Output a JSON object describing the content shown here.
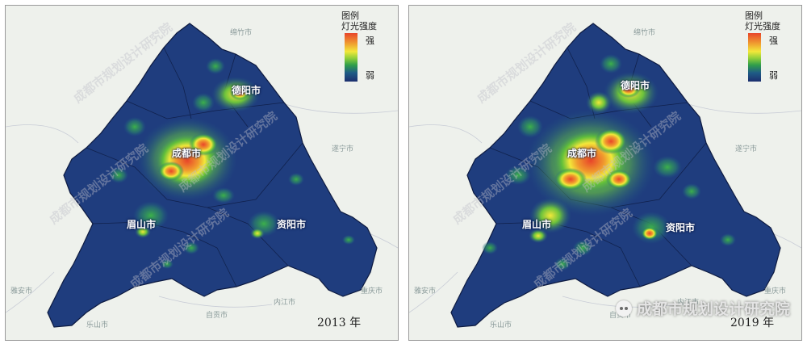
{
  "panels": [
    {
      "year": "2013 年",
      "legend": {
        "title": "图例",
        "subtitle": "灯光强度",
        "high": "强",
        "low": "弱"
      },
      "cities": {
        "deyang": "德阳市",
        "chengdu": "成都市",
        "meishan": "眉山市",
        "ziyang": "资阳市"
      },
      "background_places": [
        "绵竹市",
        "遂宁市",
        "雅安市",
        "乐山市",
        "自贡市",
        "内江市",
        "重庆市"
      ]
    },
    {
      "year": "2019 年",
      "legend": {
        "title": "图例",
        "subtitle": "灯光强度",
        "high": "强",
        "low": "弱"
      },
      "cities": {
        "deyang": "德阳市",
        "chengdu": "成都市",
        "meishan": "眉山市",
        "ziyang": "资阳市"
      },
      "background_places": [
        "绵竹市",
        "遂宁市",
        "雅安市",
        "乐山市",
        "自贡市",
        "内江市",
        "重庆市"
      ]
    }
  ],
  "watermark": "成都市规划设计研究院",
  "brand": "成都市规划设计研究院",
  "colors": {
    "base_dark": "#1f3d7e",
    "strong": "#e8452a",
    "medium": "#f2e83a",
    "weak": "#2f9e4a",
    "background": "#eef1ec"
  }
}
